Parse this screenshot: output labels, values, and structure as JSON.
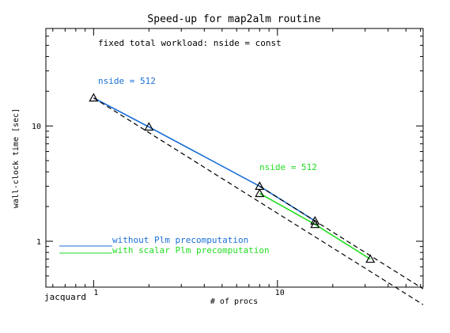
{
  "chart_data": {
    "type": "line",
    "title": "Speed-up for map2alm routine",
    "xlabel": "# of procs",
    "ylabel": "wall-clock time [sec]",
    "xscale": "log",
    "yscale": "log",
    "xlim": [
      0.55,
      62
    ],
    "ylim": [
      0.4,
      70
    ],
    "x_tick_labels": [
      {
        "value": 1,
        "label": "1"
      },
      {
        "value": 10,
        "label": "10"
      }
    ],
    "y_tick_labels": [
      {
        "value": 1,
        "label": "1"
      },
      {
        "value": 10,
        "label": "10"
      }
    ],
    "annotations": {
      "subtitle": "fixed total workload: nside = const",
      "corner_label": "jacquard",
      "blue_series_label": "nside = 512",
      "green_series_label": "nside = 512"
    },
    "legend": {
      "placement": "bottom-left",
      "entries": [
        {
          "label": "without Plm precomputation",
          "color": "#1a6fd6"
        },
        {
          "label": "with scalar Plm precomputation",
          "color": "#22dd22"
        }
      ]
    },
    "series": [
      {
        "name": "without Plm precomputation",
        "color": "#1a6fd6",
        "style": "solid",
        "x": [
          1,
          2,
          8,
          16
        ],
        "y": [
          17.5,
          9.8,
          3.0,
          1.5
        ]
      },
      {
        "name": "with scalar Plm precomputation",
        "color": "#22dd22",
        "style": "solid",
        "x": [
          8,
          16,
          32
        ],
        "y": [
          2.6,
          1.4,
          0.7
        ]
      },
      {
        "name": "ideal scaling (from 1 proc)",
        "color": "#000000",
        "style": "dashed",
        "x": [
          1,
          62
        ],
        "y": [
          17.5,
          0.282
        ]
      },
      {
        "name": "ideal scaling (from 8 procs)",
        "color": "#000000",
        "style": "dashed",
        "x": [
          8,
          62
        ],
        "y": [
          3.0,
          0.387
        ]
      }
    ],
    "markers": {
      "shape": "triangle",
      "color": "#000000",
      "points": [
        {
          "x": 1,
          "y": 17.5
        },
        {
          "x": 2,
          "y": 9.8
        },
        {
          "x": 8,
          "y": 3.0
        },
        {
          "x": 8,
          "y": 2.6
        },
        {
          "x": 16,
          "y": 1.5
        },
        {
          "x": 16,
          "y": 1.4
        },
        {
          "x": 32,
          "y": 0.7
        }
      ]
    }
  }
}
